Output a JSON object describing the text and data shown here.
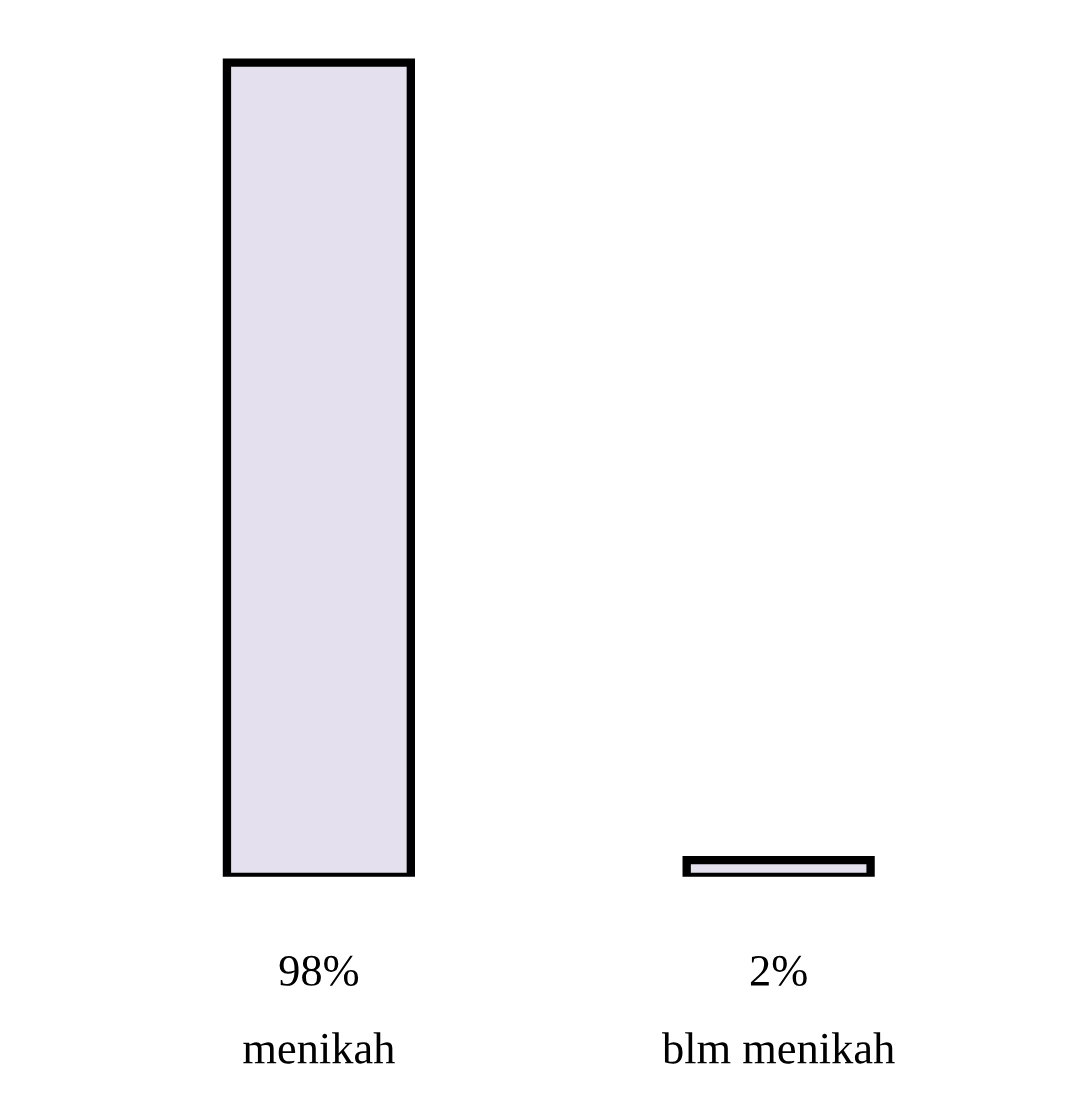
{
  "chart_data": {
    "type": "bar",
    "categories": [
      "menikah",
      "blm menikah"
    ],
    "values": [
      98,
      2
    ],
    "value_labels": [
      "98%",
      "2%"
    ],
    "color": "#e4e0ee",
    "grid": false,
    "legend": false
  }
}
